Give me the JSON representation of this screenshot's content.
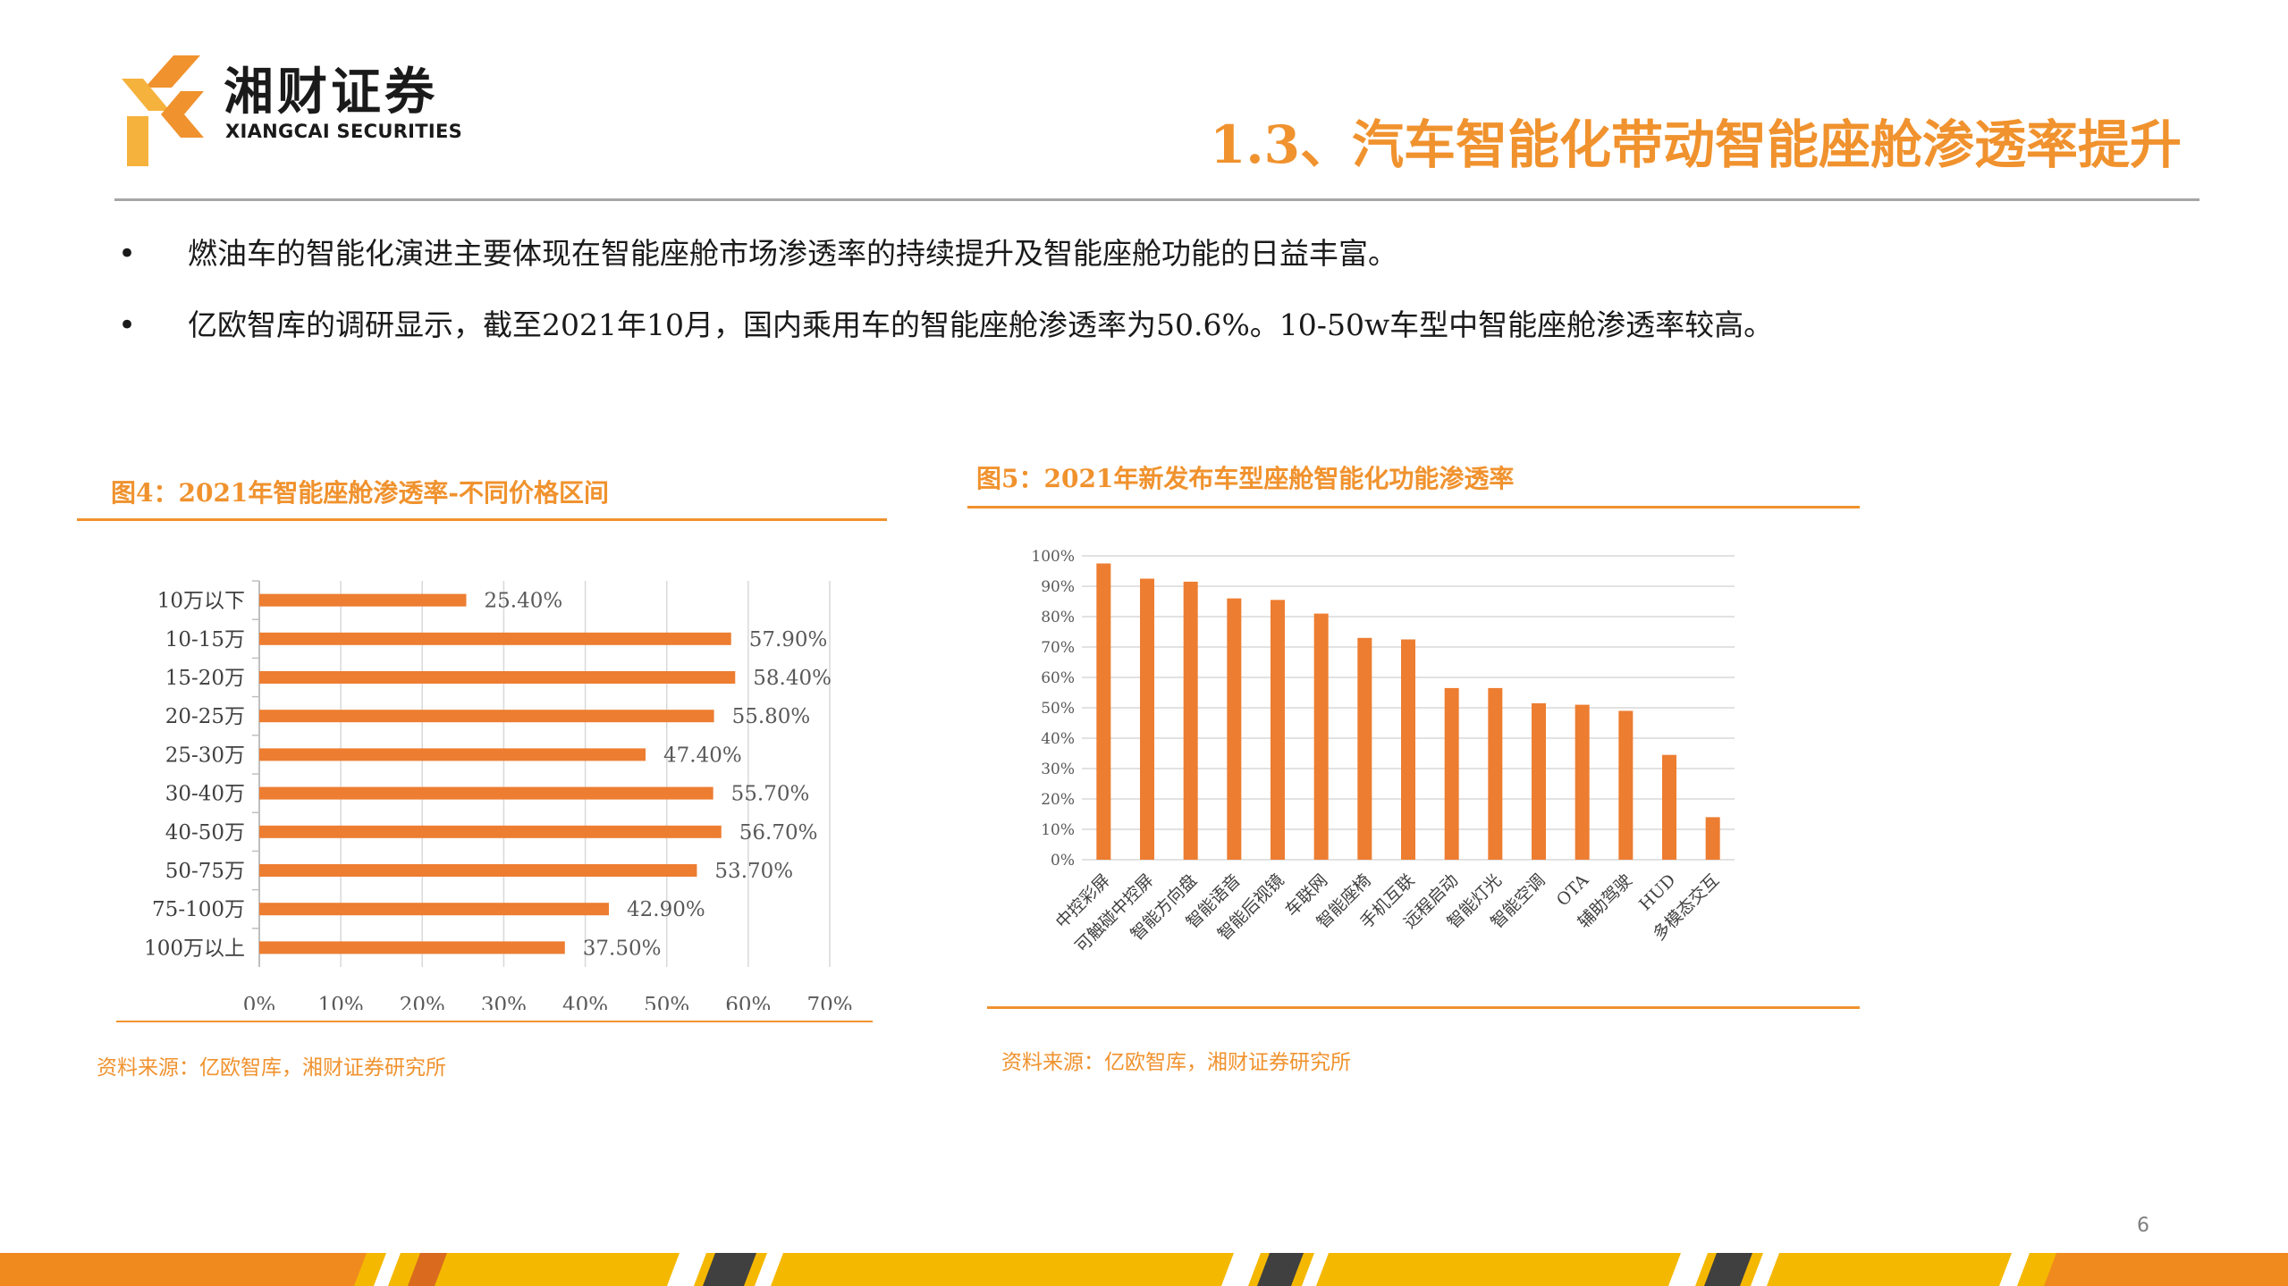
{
  "header": {
    "brand_cn": "湘财证券",
    "brand_en": "XIANGCAI SECURITIES",
    "title": "1.3、汽车智能化带动智能座舱渗透率提升"
  },
  "bullets": [
    {
      "symbol": "•",
      "text": "燃油车的智能化演进主要体现在智能座舱市场渗透率的持续提升及智能座舱功能的日益丰富。"
    },
    {
      "symbol": "•",
      "text": "亿欧智库的调研显示，截至2021年10月，国内乘用车的智能座舱渗透率为50.6%。10-50w车型中智能座舱渗透率较高。"
    }
  ],
  "figures": [
    {
      "title": "图4：2021年智能座舱渗透率-不同价格区间",
      "source": "资料来源：亿欧智库，湘财证券研究所"
    },
    {
      "title": "图5：2021年新发布车型座舱智能化功能渗透率",
      "source": "资料来源：亿欧智库，湘财证券研究所"
    }
  ],
  "page_number": "6",
  "colors": {
    "accent": "#f0922e",
    "bar": "#ed7d31",
    "grid": "#d9d9d9",
    "text": "#1a1a1a"
  },
  "chart_data": [
    {
      "type": "bar",
      "orientation": "horizontal",
      "title": "图4：2021年智能座舱渗透率-不同价格区间",
      "categories": [
        "10万以下",
        "10-15万",
        "15-20万",
        "20-25万",
        "25-30万",
        "30-40万",
        "40-50万",
        "50-75万",
        "75-100万",
        "100万以上"
      ],
      "values": [
        25.4,
        57.9,
        58.4,
        55.8,
        47.4,
        55.7,
        56.7,
        53.7,
        42.9,
        37.5
      ],
      "data_labels": [
        "25.40%",
        "57.90%",
        "58.40%",
        "55.80%",
        "47.40%",
        "55.70%",
        "56.70%",
        "53.70%",
        "42.90%",
        "37.50%"
      ],
      "xlim": [
        0,
        70
      ],
      "ticks": [
        0,
        10,
        20,
        30,
        40,
        50,
        60,
        70
      ],
      "tick_labels": [
        "0%",
        "10%",
        "20%",
        "30%",
        "40%",
        "50%",
        "60%",
        "70%"
      ],
      "grid": "vertical",
      "legend": "none"
    },
    {
      "type": "bar",
      "orientation": "vertical",
      "title": "图5：2021年新发布车型座舱智能化功能渗透率",
      "categories": [
        "中控彩屏",
        "可触碰中控屏",
        "智能方向盘",
        "智能语音",
        "智能后视镜",
        "车联网",
        "智能座椅",
        "手机互联",
        "远程启动",
        "智能灯光",
        "智能空调",
        "OTA",
        "辅助驾驶",
        "HUD",
        "多模态交互"
      ],
      "values": [
        97.5,
        92.5,
        91.5,
        86,
        85.5,
        81,
        73,
        72.5,
        56.5,
        56.5,
        51.5,
        51,
        49,
        34.5,
        14
      ],
      "ylim": [
        0,
        100
      ],
      "ticks": [
        0,
        10,
        20,
        30,
        40,
        50,
        60,
        70,
        80,
        90,
        100
      ],
      "tick_labels": [
        "0%",
        "10%",
        "20%",
        "30%",
        "40%",
        "50%",
        "60%",
        "70%",
        "80%",
        "90%",
        "100%"
      ],
      "grid": "horizontal",
      "legend": "none"
    }
  ]
}
